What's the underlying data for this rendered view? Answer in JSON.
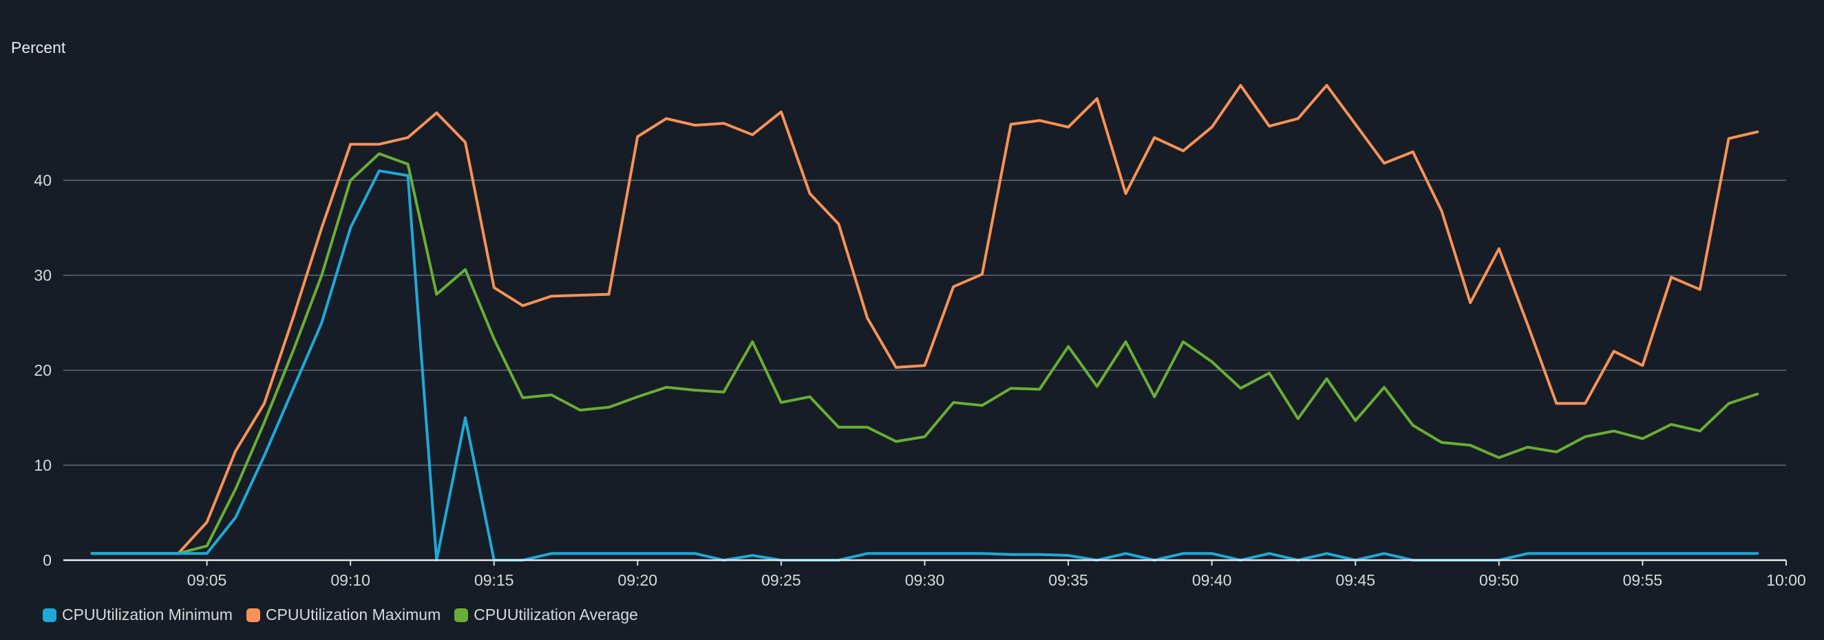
{
  "chart_data": {
    "type": "line",
    "ylabel": "Percent",
    "xlabel": "",
    "title": "",
    "ylim": [
      0,
      50
    ],
    "yticks": [
      0,
      10,
      20,
      30,
      40
    ],
    "xlim": [
      "09:00",
      "10:00"
    ],
    "xticks": [
      "09:05",
      "09:10",
      "09:15",
      "09:20",
      "09:25",
      "09:30",
      "09:35",
      "09:40",
      "09:45",
      "09:50",
      "09:55",
      "10:00"
    ],
    "grid": "horizontal",
    "legend_position": "bottom-left",
    "x": [
      "09:01",
      "09:02",
      "09:03",
      "09:04",
      "09:05",
      "09:06",
      "09:07",
      "09:08",
      "09:09",
      "09:10",
      "09:11",
      "09:12",
      "09:13",
      "09:14",
      "09:15",
      "09:16",
      "09:17",
      "09:18",
      "09:19",
      "09:20",
      "09:21",
      "09:22",
      "09:23",
      "09:24",
      "09:25",
      "09:26",
      "09:27",
      "09:28",
      "09:29",
      "09:30",
      "09:31",
      "09:32",
      "09:33",
      "09:34",
      "09:35",
      "09:36",
      "09:37",
      "09:38",
      "09:39",
      "09:40",
      "09:41",
      "09:42",
      "09:43",
      "09:44",
      "09:45",
      "09:46",
      "09:47",
      "09:48",
      "09:49",
      "09:50",
      "09:51",
      "09:52",
      "09:53",
      "09:54",
      "09:55",
      "09:56",
      "09:57",
      "09:58",
      "09:59"
    ],
    "series": [
      {
        "name": "CPUUtilization Minimum",
        "color": "#1fa9d7",
        "values": [
          0.7,
          0.7,
          0.7,
          0.7,
          0.7,
          4.5,
          11,
          18,
          25,
          35,
          41,
          40.5,
          0,
          15,
          0,
          0,
          0.7,
          0.7,
          0.7,
          0.7,
          0.7,
          0.7,
          0,
          0.5,
          0,
          0,
          0,
          0.7,
          0.7,
          0.7,
          0.7,
          0.7,
          0.6,
          0.6,
          0.5,
          0,
          0.7,
          0,
          0.7,
          0.7,
          0,
          0.7,
          0,
          0.7,
          0,
          0.7,
          0,
          0,
          0,
          0,
          0.7,
          0.7,
          0.7,
          0.7,
          0.7,
          0.7,
          0.7,
          0.7,
          0.7
        ]
      },
      {
        "name": "CPUUtilization Maximum",
        "color": "#f89256",
        "values": [
          0.7,
          0.7,
          0.7,
          0.7,
          4,
          11.5,
          16.5,
          25.5,
          35,
          43.8,
          43.8,
          44.5,
          47.1,
          44,
          28.7,
          26.8,
          27.8,
          27.9,
          28,
          44.6,
          46.5,
          45.8,
          46,
          44.8,
          47.2,
          38.6,
          35.4,
          25.5,
          20.3,
          20.5,
          28.8,
          30.1,
          45.9,
          46.3,
          45.6,
          48.6,
          38.6,
          44.5,
          43.1,
          45.6,
          50,
          45.7,
          46.5,
          50,
          45.9,
          41.8,
          43,
          36.8,
          27.1,
          32.8,
          24.8,
          16.5,
          16.5,
          22,
          20.5,
          29.8,
          28.5,
          44.4,
          45.1
        ]
      },
      {
        "name": "CPUUtilization Average",
        "color": "#69ae34",
        "values": [
          0.7,
          0.7,
          0.7,
          0.7,
          1.5,
          7.5,
          14.5,
          22,
          30,
          40,
          42.8,
          41.7,
          28,
          30.6,
          23.3,
          17.1,
          17.4,
          15.8,
          16.1,
          17.2,
          18.2,
          17.9,
          17.7,
          23,
          16.6,
          17.2,
          14,
          14,
          12.5,
          13,
          16.6,
          16.3,
          18.1,
          18,
          22.5,
          18.3,
          23,
          17.2,
          23,
          20.9,
          18.1,
          19.7,
          14.9,
          19.1,
          14.7,
          18.2,
          14.2,
          12.4,
          12.1,
          10.8,
          11.9,
          11.4,
          13,
          13.6,
          12.8,
          14.3,
          13.6,
          16.5,
          17.5
        ]
      }
    ]
  }
}
